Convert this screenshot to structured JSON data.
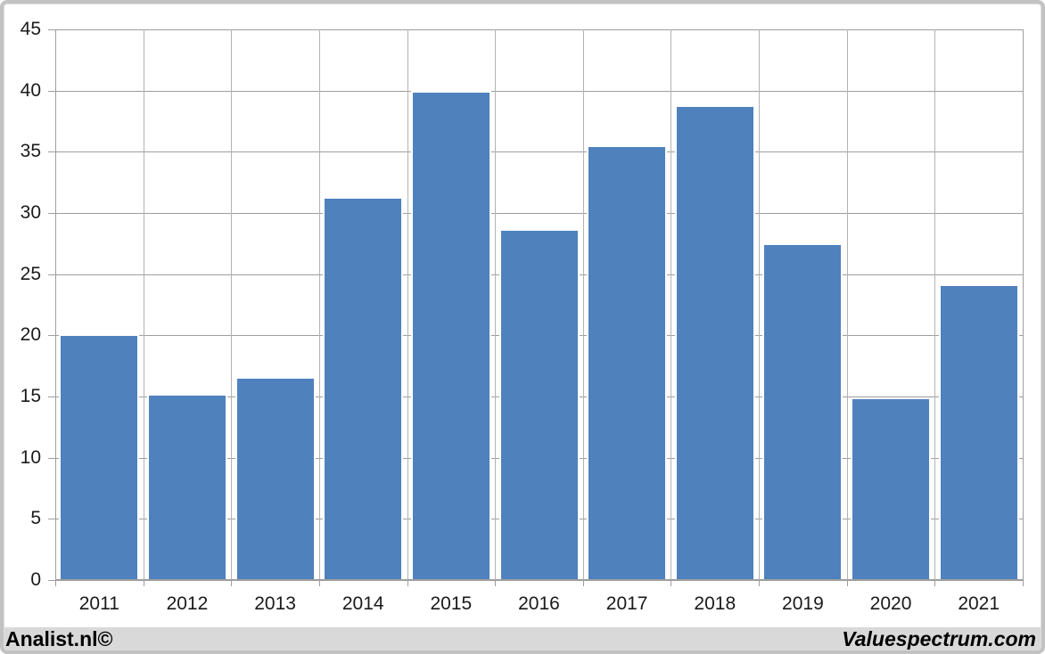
{
  "chart_data": {
    "type": "bar",
    "title": "",
    "xlabel": "",
    "ylabel": "",
    "categories": [
      "2011",
      "2012",
      "2013",
      "2014",
      "2015",
      "2016",
      "2017",
      "2018",
      "2019",
      "2020",
      "2021"
    ],
    "values": [
      20.1,
      15.2,
      16.6,
      31.3,
      40.0,
      28.7,
      35.5,
      38.8,
      27.5,
      14.9,
      24.2
    ],
    "ylim": [
      0,
      45
    ],
    "ytick_step": 5,
    "grid": "horizontal-and-vertical",
    "legend": "none",
    "bar_color": "#4f81bd",
    "bar_border_color": "#ffffff"
  },
  "colors": {
    "background": "#ffffff",
    "hgrid": "#9e9e9e",
    "vgrid": "#b3b3b3",
    "axis": "#9e9e9e",
    "tick": "#9e9e9e",
    "label_text": "#1a1a1a",
    "frame_border": "#c2c2c2",
    "footer_background": "#d9d9d9"
  },
  "footer": {
    "left_label": "Analist.nl©",
    "right_label": "Valuespectrum.com"
  }
}
